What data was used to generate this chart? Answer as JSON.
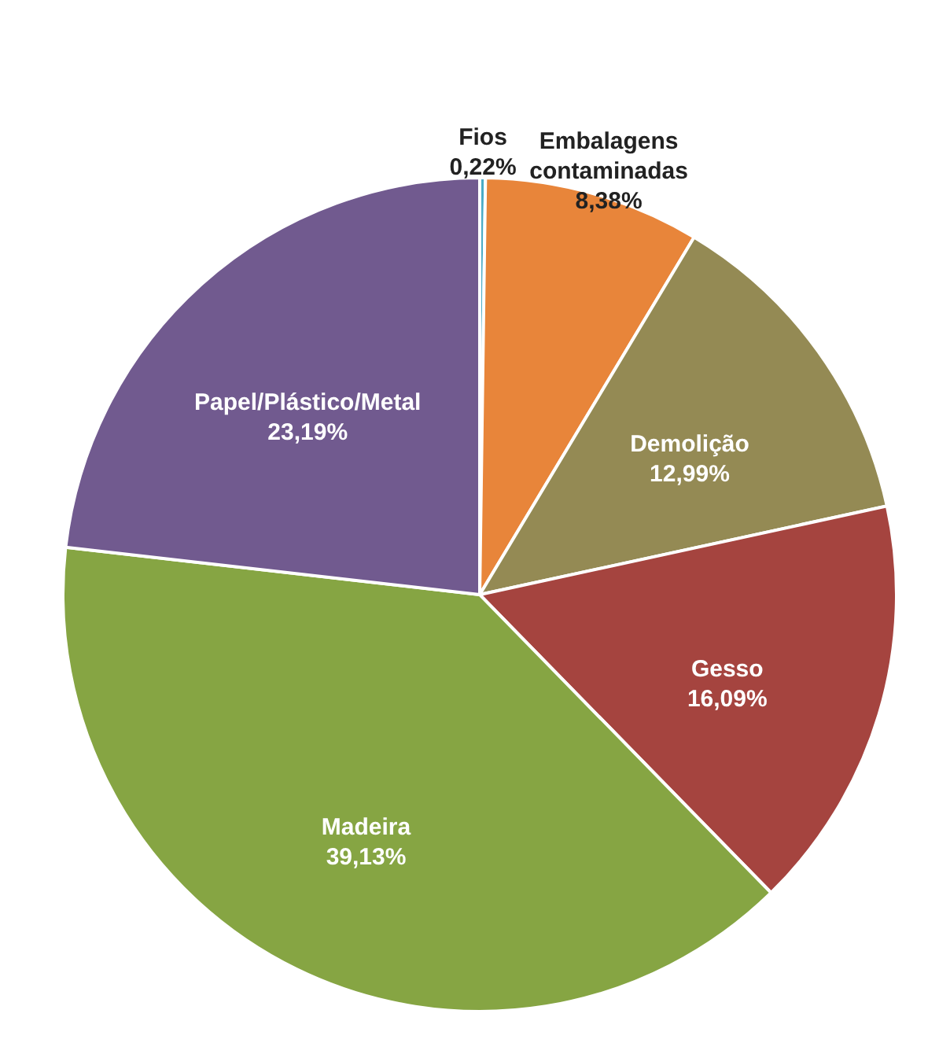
{
  "chart_data": {
    "type": "pie",
    "categories": [
      "Fios",
      "Embalagens contaminadas",
      "Demolição",
      "Gesso",
      "Madeira",
      "Papel/Plástico/Metal"
    ],
    "values": [
      0.22,
      8.38,
      12.99,
      16.09,
      39.13,
      23.19
    ],
    "colors": [
      "#4bacc6",
      "#e8853a",
      "#948a54",
      "#a5443f",
      "#86a543",
      "#715a8f"
    ],
    "data_labels": true,
    "value_labels": [
      "0,22%",
      "8,38%",
      "12,99%",
      "16,09%",
      "39,13%",
      "23,19%"
    ]
  }
}
